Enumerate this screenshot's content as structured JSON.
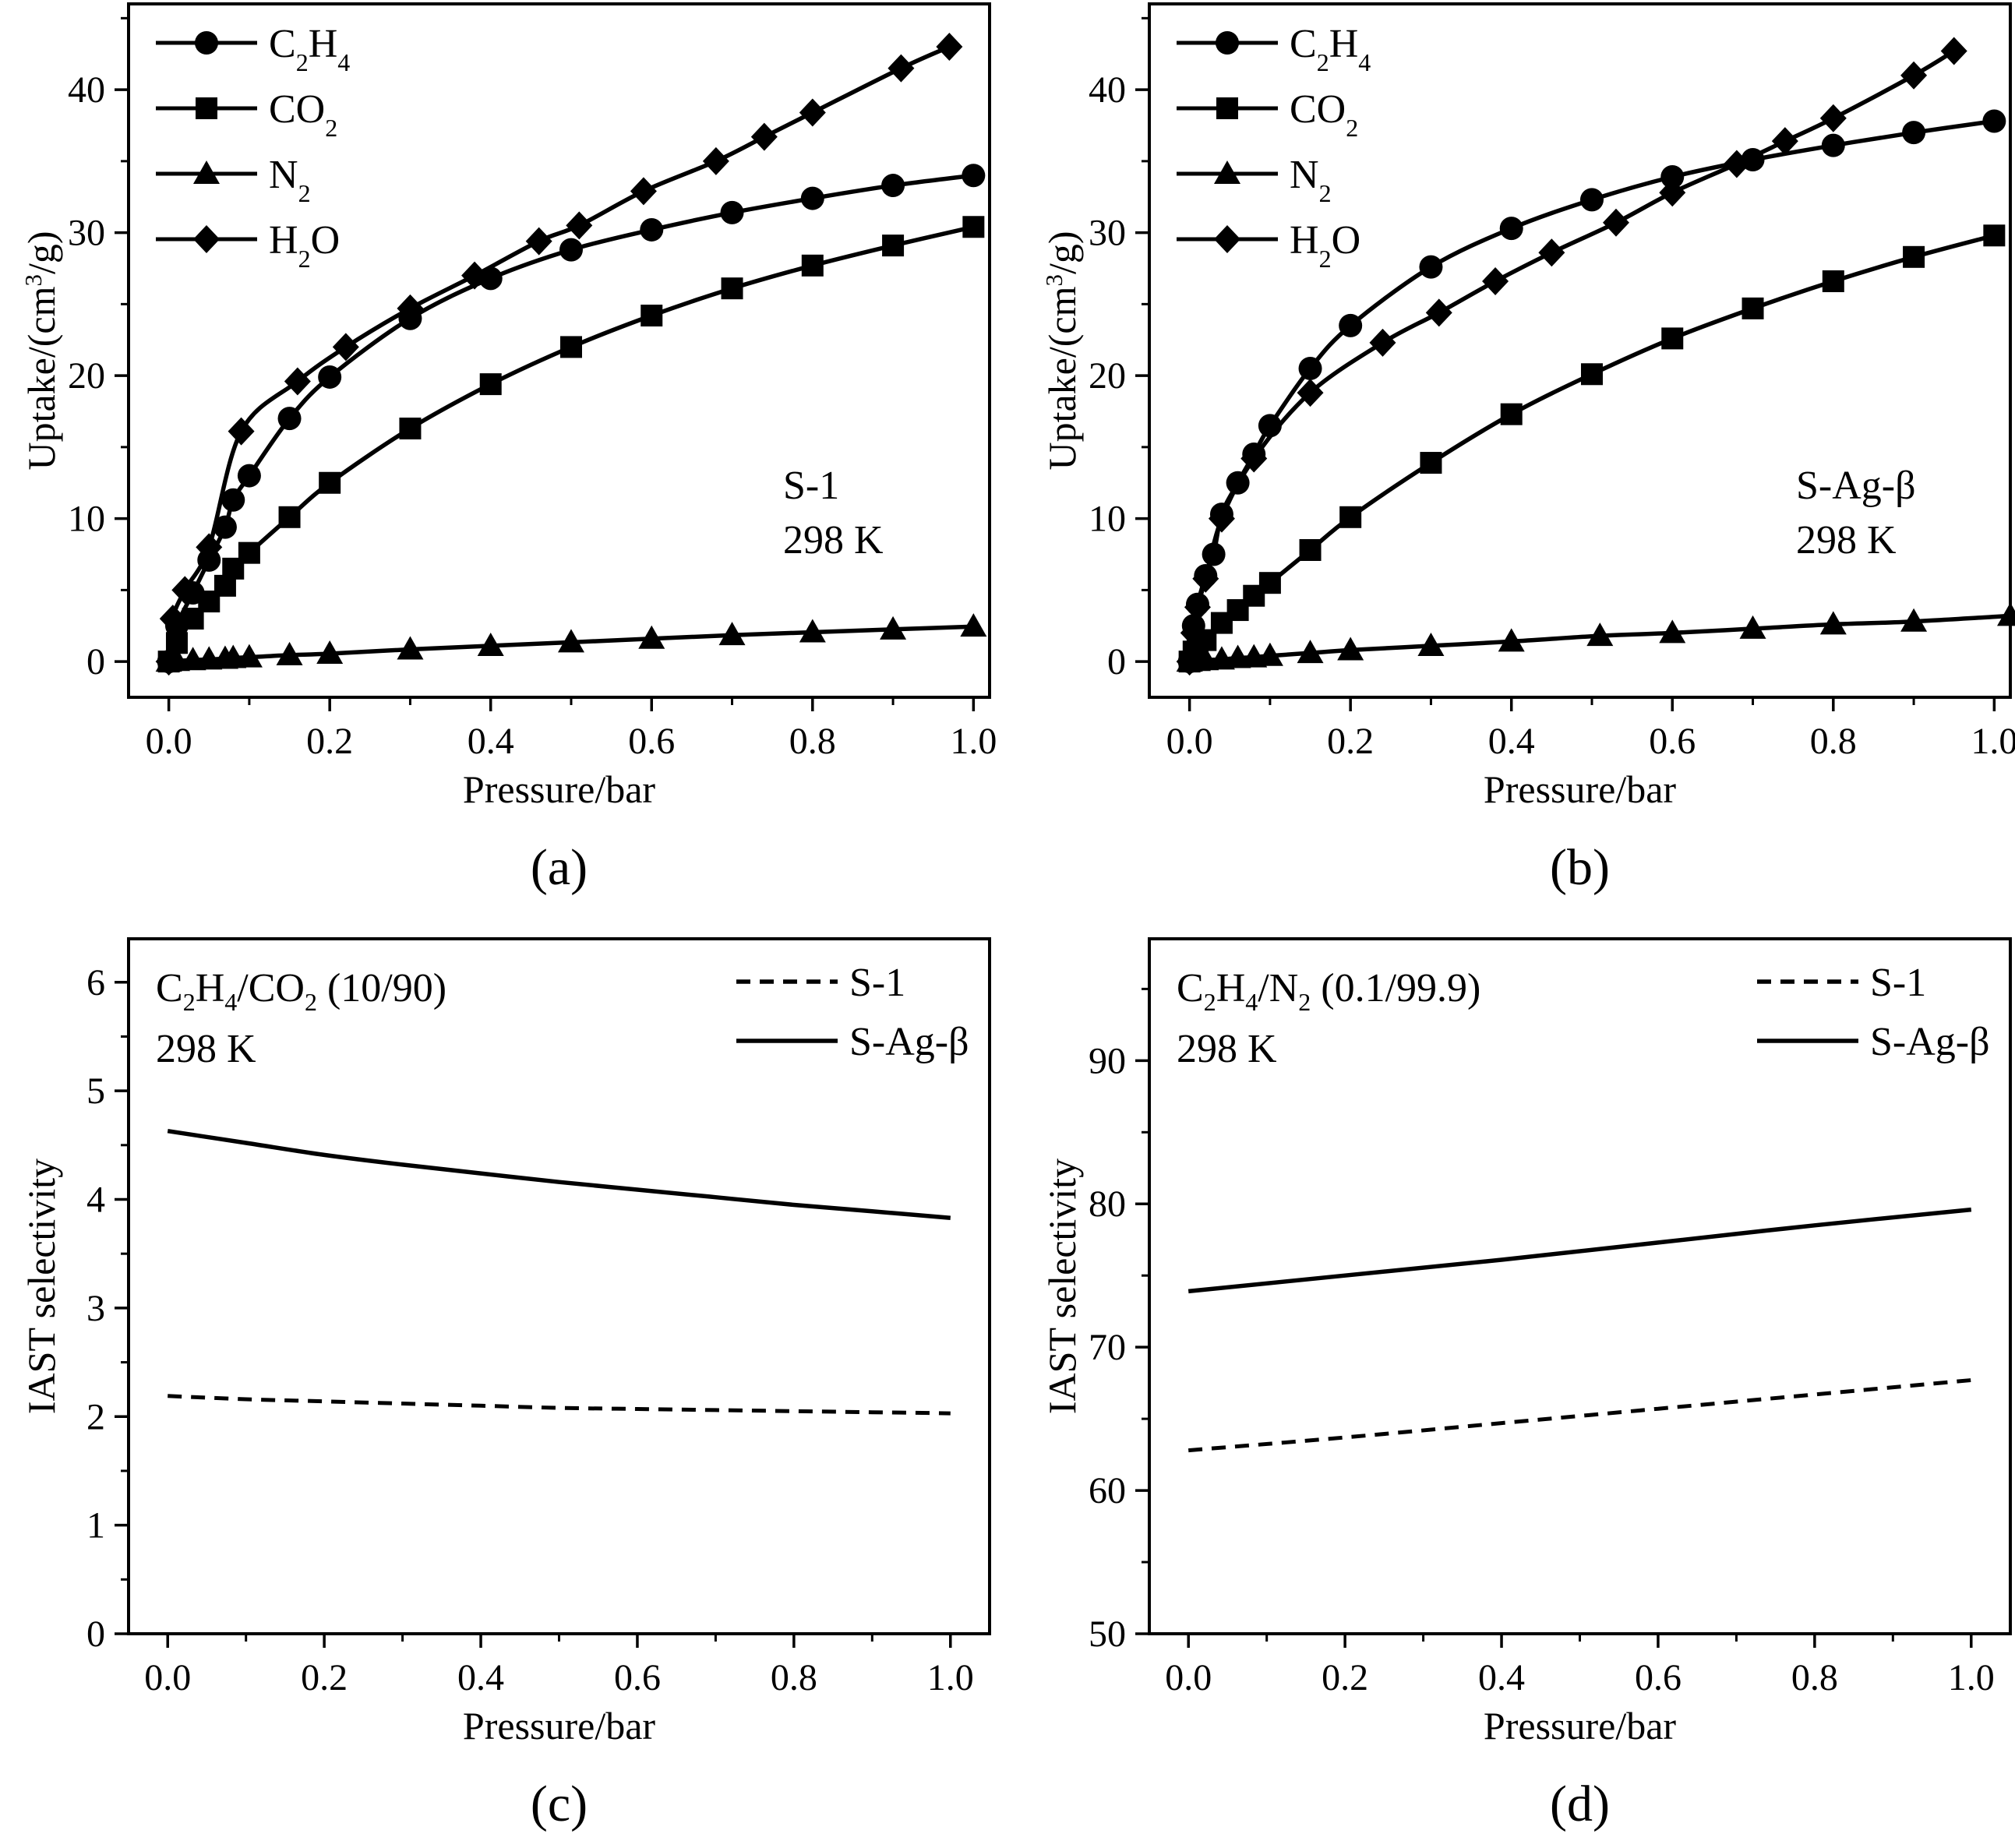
{
  "figure": {
    "panels": [
      {
        "label": "(a)",
        "annotation": [
          "S-1",
          "298 K"
        ],
        "chart_ref": 0
      },
      {
        "label": "(b)",
        "annotation": [
          "S-Ag-β",
          "298 K"
        ],
        "chart_ref": 1
      },
      {
        "label": "(c)",
        "annotation": [
          "298 K"
        ],
        "chart_ref": 2
      },
      {
        "label": "(d)",
        "annotation": [
          "298 K"
        ],
        "chart_ref": 3
      }
    ]
  },
  "chart_data": [
    {
      "type": "scatter",
      "title": "S-1 298 K",
      "panel_label": "(a)",
      "xlabel": "Pressure/bar",
      "ylabel": "Uptake/(cm³/g)",
      "xlim": [
        -0.05,
        1.02
      ],
      "ylim": [
        -2.5,
        46
      ],
      "xticks": [
        "0.0",
        "0.2",
        "0.4",
        "0.6",
        "0.8",
        "1.0"
      ],
      "yticks": [
        "0",
        "10",
        "20",
        "30",
        "40"
      ],
      "legend_position": "top-left",
      "series": [
        {
          "name": "C₂H₄",
          "marker": "circle",
          "x": [
            0.0,
            0.01,
            0.03,
            0.05,
            0.07,
            0.08,
            0.1,
            0.15,
            0.2,
            0.3,
            0.4,
            0.5,
            0.6,
            0.7,
            0.8,
            0.9,
            1.0
          ],
          "y": [
            0.0,
            2.5,
            4.8,
            7.1,
            9.4,
            11.3,
            13.0,
            17.0,
            19.9,
            24.0,
            26.8,
            28.8,
            30.2,
            31.4,
            32.4,
            33.3,
            34.0
          ]
        },
        {
          "name": "CO₂",
          "marker": "square",
          "x": [
            0.0,
            0.01,
            0.03,
            0.05,
            0.07,
            0.08,
            0.1,
            0.15,
            0.2,
            0.3,
            0.4,
            0.5,
            0.6,
            0.7,
            0.8,
            0.9,
            1.0
          ],
          "y": [
            0.0,
            1.3,
            3.0,
            4.2,
            5.3,
            6.5,
            7.6,
            10.1,
            12.5,
            16.3,
            19.4,
            22.0,
            24.2,
            26.1,
            27.7,
            29.1,
            30.4
          ]
        },
        {
          "name": "N₂",
          "marker": "triangle",
          "x": [
            0.0,
            0.01,
            0.03,
            0.05,
            0.07,
            0.08,
            0.1,
            0.15,
            0.2,
            0.3,
            0.4,
            0.5,
            0.6,
            0.7,
            0.8,
            0.9,
            1.0
          ],
          "y": [
            0.0,
            0.05,
            0.1,
            0.15,
            0.2,
            0.25,
            0.3,
            0.45,
            0.55,
            0.85,
            1.1,
            1.35,
            1.6,
            1.85,
            2.05,
            2.25,
            2.45
          ]
        },
        {
          "name": "H₂O",
          "marker": "diamond",
          "x": [
            0.0,
            0.005,
            0.02,
            0.05,
            0.09,
            0.16,
            0.22,
            0.3,
            0.38,
            0.46,
            0.51,
            0.59,
            0.68,
            0.74,
            0.8,
            0.91,
            0.97
          ],
          "y": [
            0.0,
            3.0,
            5.0,
            8.0,
            16.1,
            19.6,
            22.0,
            24.7,
            27.0,
            29.4,
            30.5,
            32.9,
            35.0,
            36.7,
            38.4,
            41.5,
            43.0
          ]
        }
      ]
    },
    {
      "type": "scatter",
      "title": "S-Ag-β 298 K",
      "panel_label": "(b)",
      "xlabel": "Pressure/bar",
      "ylabel": "Uptake/(cm³/g)",
      "xlim": [
        -0.05,
        1.02
      ],
      "ylim": [
        -2.5,
        46
      ],
      "xticks": [
        "0.0",
        "0.2",
        "0.4",
        "0.6",
        "0.8",
        "1.0"
      ],
      "yticks": [
        "0",
        "10",
        "20",
        "30",
        "40"
      ],
      "legend_position": "top-left",
      "series": [
        {
          "name": "C₂H₄",
          "marker": "circle",
          "x": [
            0.0,
            0.005,
            0.01,
            0.02,
            0.03,
            0.04,
            0.06,
            0.08,
            0.1,
            0.15,
            0.2,
            0.3,
            0.4,
            0.5,
            0.6,
            0.7,
            0.8,
            0.9,
            1.0
          ],
          "y": [
            0.0,
            2.5,
            4.0,
            6.0,
            7.5,
            10.3,
            12.5,
            14.5,
            16.5,
            20.5,
            23.5,
            27.6,
            30.3,
            32.3,
            33.9,
            35.1,
            36.1,
            37.0,
            37.8
          ]
        },
        {
          "name": "CO₂",
          "marker": "square",
          "x": [
            0.0,
            0.005,
            0.01,
            0.02,
            0.04,
            0.06,
            0.08,
            0.1,
            0.15,
            0.2,
            0.3,
            0.4,
            0.5,
            0.6,
            0.7,
            0.8,
            0.9,
            1.0
          ],
          "y": [
            0.0,
            0.7,
            1.0,
            1.5,
            2.7,
            3.6,
            4.6,
            5.5,
            7.8,
            10.1,
            13.9,
            17.3,
            20.1,
            22.6,
            24.7,
            26.6,
            28.3,
            29.8
          ]
        },
        {
          "name": "N₂",
          "marker": "triangle",
          "x": [
            0.0,
            0.01,
            0.02,
            0.04,
            0.06,
            0.08,
            0.1,
            0.15,
            0.2,
            0.3,
            0.4,
            0.51,
            0.6,
            0.7,
            0.8,
            0.9,
            1.02
          ],
          "y": [
            0.0,
            0.05,
            0.1,
            0.15,
            0.25,
            0.3,
            0.4,
            0.6,
            0.8,
            1.1,
            1.4,
            1.8,
            2.0,
            2.3,
            2.6,
            2.8,
            3.2
          ]
        },
        {
          "name": "H₂O",
          "marker": "diamond",
          "x": [
            0.0,
            0.005,
            0.01,
            0.02,
            0.04,
            0.08,
            0.15,
            0.24,
            0.31,
            0.38,
            0.45,
            0.53,
            0.6,
            0.68,
            0.74,
            0.8,
            0.9,
            0.95
          ],
          "y": [
            0.0,
            2.0,
            3.8,
            5.8,
            10.0,
            14.2,
            18.8,
            22.3,
            24.4,
            26.6,
            28.6,
            30.7,
            32.8,
            34.8,
            36.4,
            38.0,
            41.0,
            42.7
          ]
        }
      ]
    },
    {
      "type": "line",
      "title": "C₂H₄/CO₂ (10/90) 298 K",
      "panel_label": "(c)",
      "title_parts": {
        "main": "C",
        "s1": "2",
        "mid1": "H",
        "s2": "4",
        "mid2": "/CO",
        "s3": "2",
        "tail": " (10/90)"
      },
      "xlabel": "Pressure/bar",
      "ylabel": "IAST selectivity",
      "xlim": [
        -0.05,
        1.05
      ],
      "ylim": [
        0,
        6.4
      ],
      "xticks": [
        "0.0",
        "0.2",
        "0.4",
        "0.6",
        "0.8",
        "1.0"
      ],
      "yticks": [
        "0",
        "1",
        "2",
        "3",
        "4",
        "5",
        "6"
      ],
      "legend_position": "top-right",
      "series": [
        {
          "name": "S-1",
          "style": "dashed",
          "x": [
            0.0,
            0.1,
            0.2,
            0.3,
            0.4,
            0.5,
            0.6,
            0.7,
            0.8,
            0.9,
            1.0
          ],
          "y": [
            2.19,
            2.16,
            2.14,
            2.12,
            2.1,
            2.08,
            2.07,
            2.06,
            2.05,
            2.04,
            2.03
          ]
        },
        {
          "name": "S-Ag-β",
          "style": "solid",
          "x": [
            0.0,
            0.1,
            0.2,
            0.3,
            0.4,
            0.5,
            0.6,
            0.7,
            0.8,
            0.9,
            1.0
          ],
          "y": [
            4.63,
            4.52,
            4.41,
            4.32,
            4.24,
            4.16,
            4.09,
            4.02,
            3.95,
            3.89,
            3.83
          ]
        }
      ]
    },
    {
      "type": "line",
      "title": "C₂H₄/N₂ (0.1/99.9) 298 K",
      "panel_label": "(d)",
      "title_parts": {
        "main": "C",
        "s1": "2",
        "mid1": "H",
        "s2": "4",
        "mid2": "/N",
        "s3": "2",
        "tail": " (0.1/99.9)"
      },
      "xlabel": "Pressure/bar",
      "ylabel": "IAST selectivity",
      "xlim": [
        -0.05,
        1.05
      ],
      "ylim": [
        50,
        98.5
      ],
      "xticks": [
        "0.0",
        "0.2",
        "0.4",
        "0.6",
        "0.8",
        "1.0"
      ],
      "yticks": [
        "50",
        "60",
        "70",
        "80",
        "90"
      ],
      "legend_position": "top-right",
      "series": [
        {
          "name": "S-1",
          "style": "dashed",
          "x": [
            0.0,
            0.2,
            0.4,
            0.6,
            0.8,
            1.0
          ],
          "y": [
            62.8,
            63.7,
            64.7,
            65.7,
            66.7,
            67.7
          ]
        },
        {
          "name": "S-Ag-β",
          "style": "solid",
          "x": [
            0.0,
            0.2,
            0.4,
            0.6,
            0.8,
            1.0
          ],
          "y": [
            73.9,
            75.0,
            76.1,
            77.3,
            78.5,
            79.6
          ]
        }
      ]
    }
  ]
}
